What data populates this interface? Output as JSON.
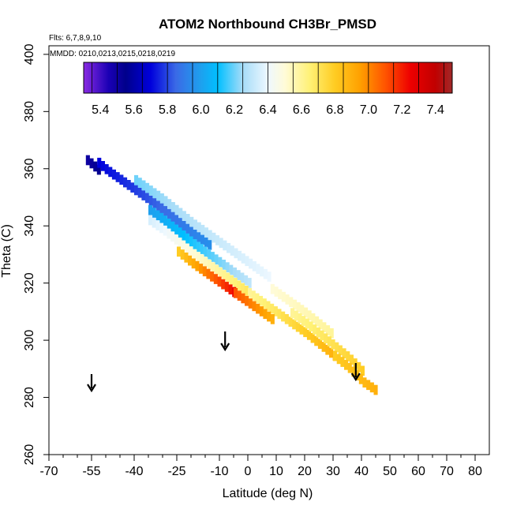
{
  "chart_data": {
    "type": "heatmap",
    "title": "ATOM2 Northbound CH3Br_PMSD",
    "annotations": {
      "flights": "Flts: 6,7,8,9,10",
      "dates": "MMDD: 0210,0213,0215,0218,0219"
    },
    "xlabel": "Latitude (deg N)",
    "ylabel": "Theta (C)",
    "xlim": [
      -70,
      85
    ],
    "ylim": [
      260,
      403
    ],
    "x_ticks_major": [
      -70,
      -55,
      -40,
      -25,
      -10,
      0,
      10,
      20,
      30,
      40,
      50,
      60,
      70,
      80
    ],
    "x_ticks_minor": [
      -65,
      -60,
      -50,
      -45,
      -35,
      -30,
      -20,
      -15,
      -5,
      5,
      15,
      25,
      35,
      45,
      55,
      65,
      75
    ],
    "y_ticks": [
      260,
      280,
      300,
      320,
      340,
      360,
      380,
      400
    ],
    "colorbar": {
      "ticks": [
        5.4,
        5.6,
        5.8,
        6.0,
        6.2,
        6.4,
        6.6,
        6.8,
        7.0,
        7.2,
        7.4
      ],
      "range": [
        5.3,
        7.5
      ],
      "stops": [
        {
          "v": 5.3,
          "c": "#8a2be2"
        },
        {
          "v": 5.45,
          "c": "#1a00b4"
        },
        {
          "v": 5.55,
          "c": "#00008b"
        },
        {
          "v": 5.7,
          "c": "#0000dc"
        },
        {
          "v": 5.85,
          "c": "#3a6ae6"
        },
        {
          "v": 6.0,
          "c": "#1ea0ee"
        },
        {
          "v": 6.1,
          "c": "#00bfff"
        },
        {
          "v": 6.25,
          "c": "#a6dcf8"
        },
        {
          "v": 6.4,
          "c": "#eef8ff"
        },
        {
          "v": 6.5,
          "c": "#fffbd8"
        },
        {
          "v": 6.65,
          "c": "#fff176"
        },
        {
          "v": 6.8,
          "c": "#ffcc22"
        },
        {
          "v": 6.95,
          "c": "#ffa000"
        },
        {
          "v": 7.1,
          "c": "#ff5400"
        },
        {
          "v": 7.25,
          "c": "#ee0000"
        },
        {
          "v": 7.4,
          "c": "#c00000"
        },
        {
          "v": 7.5,
          "c": "#a02828"
        }
      ]
    },
    "arrows_lat": [
      -55,
      -8,
      38
    ],
    "band": {
      "lat_step": 1.3,
      "theta_step": 3.5,
      "stripes": [
        {
          "lat": [
            -57,
            -52
          ],
          "offset": 1.0,
          "v": [
            5.5,
            5.55
          ]
        },
        {
          "lat": [
            -53,
            -31
          ],
          "offset": 3.5,
          "v": [
            5.7,
            5.85
          ]
        },
        {
          "lat": [
            -31,
            -14
          ],
          "offset": 3.5,
          "v": [
            5.85,
            5.95
          ]
        },
        {
          "lat": [
            -35,
            -17
          ],
          "offset": 0,
          "v": [
            6.0,
            6.15
          ]
        },
        {
          "lat": [
            -17,
            0
          ],
          "offset": 0,
          "v": [
            6.15,
            6.3
          ]
        },
        {
          "lat": [
            -35,
            0
          ],
          "offset": -3.5,
          "v": [
            6.35,
            6.7
          ]
        },
        {
          "lat": [
            0,
            30
          ],
          "offset": -3.5,
          "v": [
            6.6,
            6.9
          ]
        },
        {
          "lat": [
            -25,
            -5
          ],
          "offset": -7,
          "v": [
            6.8,
            7.25
          ]
        },
        {
          "lat": [
            -5,
            8
          ],
          "offset": -7,
          "v": [
            7.1,
            6.9
          ]
        },
        {
          "lat": [
            -40,
            8
          ],
          "offset": 7,
          "v": [
            6.2,
            6.4
          ]
        },
        {
          "lat": [
            8,
            30
          ],
          "offset": 3.5,
          "v": [
            6.5,
            6.6
          ]
        },
        {
          "lat": [
            15,
            40
          ],
          "offset": 0,
          "v": [
            6.6,
            6.8
          ]
        },
        {
          "lat": [
            30,
            45
          ],
          "offset": -3.5,
          "v": [
            6.8,
            6.9
          ]
        }
      ],
      "center_theta": [
        [
          -57,
          362
        ],
        [
          -50,
          356
        ],
        [
          -40,
          349
        ],
        [
          -30,
          342
        ],
        [
          -20,
          334
        ],
        [
          -10,
          327
        ],
        [
          0,
          320
        ],
        [
          10,
          313
        ],
        [
          20,
          306
        ],
        [
          30,
          298
        ],
        [
          35,
          294
        ],
        [
          40,
          289
        ],
        [
          46,
          285
        ]
      ]
    }
  }
}
